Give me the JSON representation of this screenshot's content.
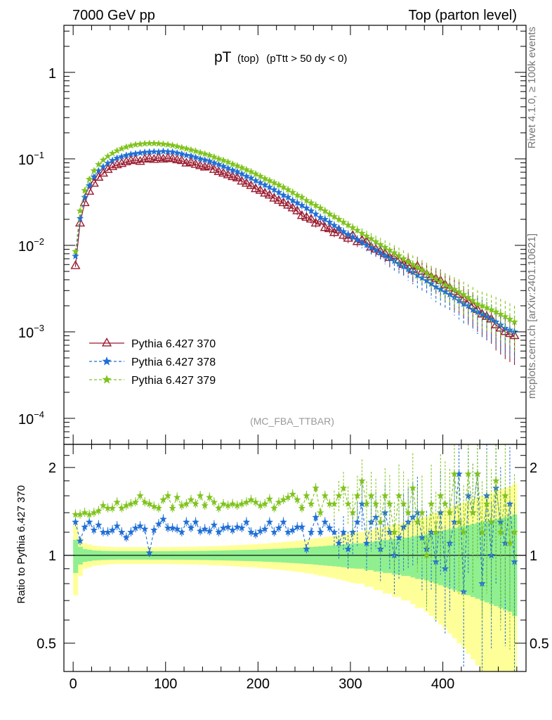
{
  "header": {
    "left": "7000 GeV pp",
    "right": "Top (parton level)"
  },
  "side_labels": {
    "rivet": "Rivet 4.1.0, ≥ 100k events",
    "mcplots": "mcplots.cern.ch [arXiv:2401.10621]"
  },
  "colors": {
    "s370": "#9a1b2f",
    "s378": "#1f6fd6",
    "s379": "#7fc31c",
    "band_inner": "#90f090",
    "band_outer": "#ffff99"
  },
  "chart_data": [
    {
      "type": "line",
      "title": "pT",
      "title_sub": "(top)",
      "title_cut": "(pTtt > 50 dy < 0)",
      "watermark": "(MC_FBA_TTBAR)",
      "yscale": "log",
      "xlim": [
        -10,
        490
      ],
      "ylim": [
        5e-05,
        3.5
      ],
      "ytick_labels": [
        {
          "v": 1,
          "base": "1",
          "exp": ""
        },
        {
          "v": 0.1,
          "base": "10",
          "exp": "−1"
        },
        {
          "v": 0.01,
          "base": "10",
          "exp": "−2"
        },
        {
          "v": 0.001,
          "base": "10",
          "exp": "−3"
        },
        {
          "v": 0.0001,
          "base": "10",
          "exp": "−4"
        }
      ],
      "x_common": [
        2.5,
        7.5,
        12.5,
        17.5,
        22.5,
        27.5,
        32.5,
        37.5,
        42.5,
        47.5,
        52.5,
        57.5,
        62.5,
        67.5,
        72.5,
        77.5,
        82.5,
        87.5,
        92.5,
        97.5,
        102.5,
        107.5,
        112.5,
        117.5,
        122.5,
        127.5,
        132.5,
        137.5,
        142.5,
        147.5,
        152.5,
        157.5,
        162.5,
        167.5,
        172.5,
        177.5,
        182.5,
        187.5,
        192.5,
        197.5,
        202.5,
        207.5,
        212.5,
        217.5,
        222.5,
        227.5,
        232.5,
        237.5,
        242.5,
        247.5,
        252.5,
        257.5,
        262.5,
        267.5,
        272.5,
        277.5,
        282.5,
        287.5,
        292.5,
        297.5,
        302.5,
        307.5,
        312.5,
        317.5,
        322.5,
        327.5,
        332.5,
        337.5,
        342.5,
        347.5,
        352.5,
        357.5,
        362.5,
        367.5,
        372.5,
        377.5,
        382.5,
        387.5,
        392.5,
        397.5,
        402.5,
        407.5,
        412.5,
        417.5,
        422.5,
        427.5,
        432.5,
        437.5,
        442.5,
        447.5,
        452.5,
        457.5,
        462.5,
        467.5,
        472.5,
        477.5
      ],
      "series": [
        {
          "name": "Pythia 6.427 370",
          "marker": "triangle",
          "dash": "",
          "values": [
            0.0058,
            0.018,
            0.031,
            0.042,
            0.052,
            0.061,
            0.068,
            0.075,
            0.081,
            0.085,
            0.088,
            0.092,
            0.095,
            0.097,
            0.093,
            0.099,
            0.101,
            0.098,
            0.103,
            0.099,
            0.102,
            0.1,
            0.097,
            0.095,
            0.089,
            0.091,
            0.086,
            0.083,
            0.08,
            0.082,
            0.075,
            0.071,
            0.068,
            0.065,
            0.062,
            0.06,
            0.055,
            0.052,
            0.049,
            0.045,
            0.043,
            0.04,
            0.038,
            0.035,
            0.033,
            0.031,
            0.029,
            0.027,
            0.025,
            0.022,
            0.021,
            0.02,
            0.018,
            0.019,
            0.016,
            0.0155,
            0.014,
            0.015,
            0.013,
            0.012,
            0.013,
            0.011,
            0.0115,
            0.011,
            0.0095,
            0.009,
            0.0085,
            0.008,
            0.0072,
            0.0076,
            0.0068,
            0.006,
            0.0063,
            0.0052,
            0.0057,
            0.005,
            0.0046,
            0.0043,
            0.0041,
            0.0039,
            0.0035,
            0.0032,
            0.0029,
            0.0027,
            0.0024,
            0.0022,
            0.002,
            0.0018,
            0.0016,
            0.0015,
            0.0014,
            0.0012,
            0.0011,
            0.001,
            0.00095,
            0.0009
          ]
        },
        {
          "name": "Pythia 6.427 378",
          "marker": "star",
          "dash": "4,3",
          "values": [
            0.0075,
            0.0205,
            0.036,
            0.049,
            0.062,
            0.073,
            0.081,
            0.089,
            0.096,
            0.102,
            0.106,
            0.11,
            0.113,
            0.115,
            0.117,
            0.119,
            0.12,
            0.121,
            0.12,
            0.122,
            0.121,
            0.12,
            0.117,
            0.114,
            0.11,
            0.108,
            0.104,
            0.1,
            0.097,
            0.094,
            0.09,
            0.086,
            0.082,
            0.078,
            0.074,
            0.071,
            0.067,
            0.063,
            0.06,
            0.056,
            0.053,
            0.05,
            0.047,
            0.044,
            0.041,
            0.038,
            0.036,
            0.033,
            0.031,
            0.029,
            0.027,
            0.025,
            0.023,
            0.021,
            0.02,
            0.0185,
            0.017,
            0.0156,
            0.0144,
            0.0134,
            0.0125,
            0.0116,
            0.0108,
            0.0101,
            0.0094,
            0.0088,
            0.0082,
            0.0076,
            0.0071,
            0.0066,
            0.0061,
            0.0057,
            0.0053,
            0.0049,
            0.0045,
            0.0042,
            0.0039,
            0.0036,
            0.0033,
            0.0031,
            0.0029,
            0.0027,
            0.0025,
            0.0023,
            0.0021,
            0.002,
            0.0018,
            0.0017,
            0.0016,
            0.0015,
            0.0014,
            0.0013,
            0.0012,
            0.0011,
            0.00105,
            0.001
          ]
        },
        {
          "name": "Pythia 6.427 379",
          "marker": "star",
          "dash": "4,3",
          "values": [
            0.0085,
            0.025,
            0.043,
            0.058,
            0.073,
            0.086,
            0.097,
            0.107,
            0.116,
            0.124,
            0.131,
            0.137,
            0.142,
            0.146,
            0.148,
            0.15,
            0.151,
            0.151,
            0.15,
            0.148,
            0.146,
            0.143,
            0.139,
            0.135,
            0.131,
            0.127,
            0.123,
            0.118,
            0.114,
            0.11,
            0.105,
            0.1,
            0.096,
            0.092,
            0.087,
            0.083,
            0.079,
            0.075,
            0.071,
            0.067,
            0.063,
            0.059,
            0.056,
            0.053,
            0.05,
            0.047,
            0.044,
            0.041,
            0.038,
            0.036,
            0.033,
            0.031,
            0.029,
            0.027,
            0.025,
            0.023,
            0.0215,
            0.02,
            0.0185,
            0.0172,
            0.016,
            0.0149,
            0.0138,
            0.0128,
            0.0119,
            0.011,
            0.0102,
            0.0095,
            0.0088,
            0.0082,
            0.0076,
            0.007,
            0.0065,
            0.006,
            0.0056,
            0.0052,
            0.0048,
            0.0044,
            0.0041,
            0.0038,
            0.0035,
            0.0033,
            0.0031,
            0.0029,
            0.0027,
            0.0025,
            0.0023,
            0.0021,
            0.002,
            0.0019,
            0.0018,
            0.0017,
            0.0016,
            0.0015,
            0.0014,
            0.0013
          ]
        }
      ]
    },
    {
      "type": "line",
      "ylabel": "Ratio to Pythia 6.427 370",
      "yscale": "log",
      "xlim": [
        -10,
        490
      ],
      "ylim": [
        0.4,
        2.4
      ],
      "ytick_labels": [
        {
          "v": 2,
          "label": "2"
        },
        {
          "v": 1,
          "label": "1"
        },
        {
          "v": 0.5,
          "label": "0.5"
        }
      ],
      "xtick_labels": [
        {
          "v": 0,
          "label": "0"
        },
        {
          "v": 100,
          "label": "100"
        },
        {
          "v": 200,
          "label": "200"
        },
        {
          "v": 300,
          "label": "300"
        },
        {
          "v": 400,
          "label": "400"
        }
      ],
      "band_inner_halfwidth": [
        0.13,
        0.07,
        0.05,
        0.045,
        0.04,
        0.038,
        0.036,
        0.035,
        0.034,
        0.033,
        0.033,
        0.033,
        0.033,
        0.033,
        0.033,
        0.033,
        0.033,
        0.033,
        0.033,
        0.033,
        0.033,
        0.034,
        0.034,
        0.034,
        0.035,
        0.035,
        0.035,
        0.036,
        0.036,
        0.037,
        0.038,
        0.038,
        0.039,
        0.04,
        0.041,
        0.042,
        0.043,
        0.044,
        0.045,
        0.046,
        0.047,
        0.049,
        0.05,
        0.052,
        0.053,
        0.055,
        0.057,
        0.059,
        0.061,
        0.063,
        0.066,
        0.068,
        0.071,
        0.074,
        0.077,
        0.08,
        0.083,
        0.086,
        0.09,
        0.094,
        0.098,
        0.1,
        0.1,
        0.11,
        0.11,
        0.12,
        0.12,
        0.13,
        0.13,
        0.14,
        0.14,
        0.15,
        0.15,
        0.16,
        0.17,
        0.17,
        0.18,
        0.19,
        0.2,
        0.21,
        0.22,
        0.23,
        0.24,
        0.25,
        0.26,
        0.27,
        0.28,
        0.29,
        0.3,
        0.31,
        0.32,
        0.33,
        0.34,
        0.35,
        0.36,
        0.38
      ],
      "band_outer_halfwidth": [
        0.27,
        0.15,
        0.1,
        0.09,
        0.08,
        0.076,
        0.072,
        0.07,
        0.068,
        0.066,
        0.066,
        0.066,
        0.066,
        0.066,
        0.066,
        0.066,
        0.066,
        0.066,
        0.066,
        0.066,
        0.066,
        0.068,
        0.068,
        0.068,
        0.07,
        0.07,
        0.07,
        0.072,
        0.072,
        0.074,
        0.076,
        0.076,
        0.078,
        0.08,
        0.082,
        0.084,
        0.086,
        0.088,
        0.09,
        0.092,
        0.094,
        0.098,
        0.1,
        0.104,
        0.106,
        0.11,
        0.114,
        0.118,
        0.122,
        0.126,
        0.132,
        0.136,
        0.142,
        0.148,
        0.154,
        0.16,
        0.166,
        0.172,
        0.18,
        0.188,
        0.196,
        0.2,
        0.2,
        0.22,
        0.22,
        0.24,
        0.24,
        0.26,
        0.26,
        0.28,
        0.28,
        0.3,
        0.3,
        0.32,
        0.34,
        0.34,
        0.36,
        0.38,
        0.4,
        0.42,
        0.44,
        0.46,
        0.48,
        0.5,
        0.52,
        0.54,
        0.56,
        0.58,
        0.6,
        0.62,
        0.64,
        0.66,
        0.68,
        0.7,
        0.72,
        0.76
      ],
      "series": [
        {
          "name": "Pythia 6.427 370",
          "values": [
            1,
            1,
            1,
            1,
            1,
            1,
            1,
            1,
            1,
            1,
            1,
            1,
            1,
            1,
            1,
            1,
            1,
            1,
            1,
            1,
            1,
            1,
            1,
            1,
            1,
            1,
            1,
            1,
            1,
            1,
            1,
            1,
            1,
            1,
            1,
            1,
            1,
            1,
            1,
            1,
            1,
            1,
            1,
            1,
            1,
            1,
            1,
            1,
            1,
            1,
            1,
            1,
            1,
            1,
            1,
            1,
            1,
            1,
            1,
            1,
            1,
            1,
            1,
            1,
            1,
            1,
            1,
            1,
            1,
            1,
            1,
            1,
            1,
            1,
            1,
            1,
            1,
            1,
            1,
            1,
            1,
            1,
            1,
            1,
            1,
            1,
            1,
            1,
            1,
            1,
            1,
            1,
            1,
            1,
            1,
            1
          ]
        },
        {
          "name": "Pythia 6.427 378",
          "values": [
            1.3,
            1.12,
            1.25,
            1.3,
            1.22,
            1.27,
            1.2,
            1.2,
            1.22,
            1.26,
            1.2,
            1.15,
            1.2,
            1.24,
            1.26,
            1.23,
            1.02,
            1.22,
            1.28,
            1.33,
            1.24,
            1.24,
            1.23,
            1.2,
            1.3,
            1.24,
            1.3,
            1.21,
            1.23,
            1.21,
            1.27,
            1.2,
            1.24,
            1.25,
            1.22,
            1.25,
            1.24,
            1.3,
            1.2,
            1.18,
            1.21,
            1.23,
            1.3,
            1.2,
            1.24,
            1.3,
            1.2,
            1.22,
            1.25,
            1.25,
            1.05,
            1.2,
            1.35,
            1.2,
            1.3,
            1.24,
            1.2,
            1.1,
            1.2,
            1.05,
            1.2,
            1.3,
            1.5,
            1.1,
            1.3,
            1.35,
            1.05,
            1.4,
            1.2,
            1.0,
            1.15,
            1.25,
            1.3,
            1.35,
            1.4,
            1.15,
            1.05,
            1.2,
            0.95,
            1.4,
            0.9,
            1.1,
            1.3,
            1.9,
            0.75,
            1.6,
            1.4,
            1.9,
            0.8,
            1.6,
            1.0,
            1.7,
            1.3,
            1.1,
            1.5,
            0.95
          ]
        },
        {
          "name": "Pythia 6.427 379",
          "values": [
            1.38,
            1.38,
            1.4,
            1.38,
            1.4,
            1.42,
            1.48,
            1.45,
            1.45,
            1.52,
            1.45,
            1.48,
            1.5,
            1.52,
            1.6,
            1.52,
            1.5,
            1.47,
            1.45,
            1.55,
            1.6,
            1.45,
            1.58,
            1.48,
            1.5,
            1.55,
            1.5,
            1.6,
            1.48,
            1.58,
            1.52,
            1.45,
            1.5,
            1.48,
            1.5,
            1.48,
            1.5,
            1.52,
            1.55,
            1.52,
            1.48,
            1.5,
            1.56,
            1.45,
            1.52,
            1.55,
            1.58,
            1.62,
            1.55,
            1.45,
            1.6,
            1.5,
            1.7,
            1.4,
            1.6,
            1.5,
            1.5,
            1.6,
            1.7,
            1.5,
            1.4,
            1.6,
            1.8,
            1.5,
            1.6,
            1.5,
            1.3,
            1.6,
            1.5,
            1.2,
            1.6,
            1.5,
            1.4,
            1.7,
            1.3,
            1.4,
            1.0,
            1.5,
            1.2,
            1.6,
            1.5,
            1.4,
            1.9,
            1.3,
            1.2,
            1.9,
            1.4,
            1.9,
            1.2,
            1.5,
            1.3,
            1.8,
            1.2,
            1.6,
            1.1,
            1.2
          ]
        }
      ]
    }
  ]
}
